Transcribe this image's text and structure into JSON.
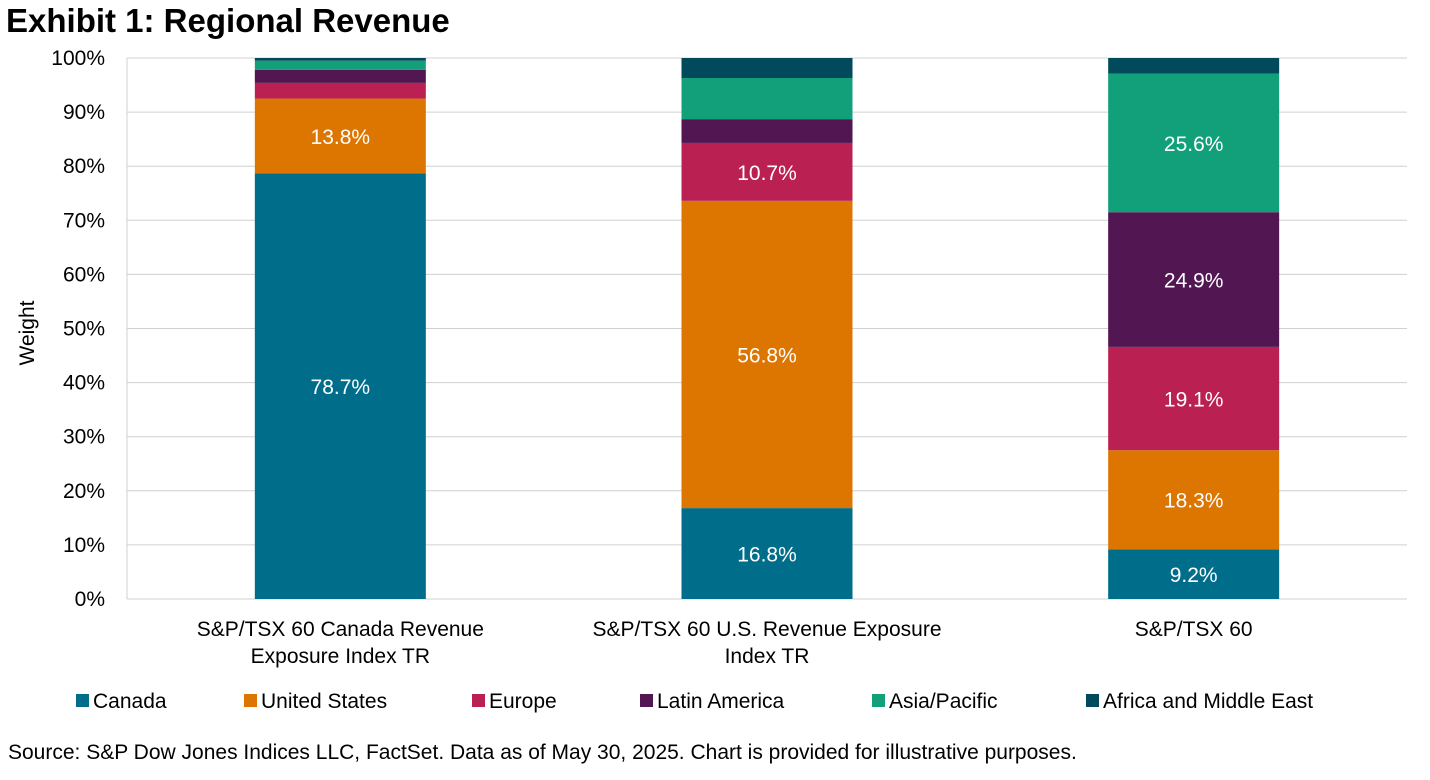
{
  "chart_data": {
    "type": "bar",
    "stacked": true,
    "title": "Exhibit 1: Regional Revenue",
    "xlabel": "",
    "ylabel": "Weight",
    "ylim": [
      0,
      100
    ],
    "yticks": [
      "0%",
      "10%",
      "20%",
      "30%",
      "40%",
      "50%",
      "60%",
      "70%",
      "80%",
      "90%",
      "100%"
    ],
    "ytick_values": [
      0,
      10,
      20,
      30,
      40,
      50,
      60,
      70,
      80,
      90,
      100
    ],
    "grid": true,
    "legend_position": "bottom",
    "categories": [
      [
        "S&P/TSX 60 Canada Revenue",
        "Exposure Index TR"
      ],
      [
        "S&P/TSX 60 U.S. Revenue Exposure",
        "Index TR"
      ],
      [
        "S&P/TSX 60"
      ]
    ],
    "series": [
      {
        "name": "Canada",
        "color": "#006E8A",
        "values": [
          78.7,
          16.8,
          9.2
        ],
        "labels": [
          "78.7%",
          "16.8%",
          "9.2%"
        ]
      },
      {
        "name": "United States",
        "color": "#DC7600",
        "values": [
          13.8,
          56.8,
          18.3
        ],
        "labels": [
          "13.8%",
          "56.8%",
          "18.3%"
        ]
      },
      {
        "name": "Europe",
        "color": "#BB2052",
        "values": [
          2.9,
          10.7,
          19.1
        ],
        "labels": [
          "",
          "10.7%",
          "19.1%"
        ]
      },
      {
        "name": "Latin America",
        "color": "#521652",
        "values": [
          2.4,
          4.4,
          24.9
        ],
        "labels": [
          "",
          "",
          "24.9%"
        ]
      },
      {
        "name": "Asia/Pacific",
        "color": "#12A07A",
        "values": [
          1.7,
          7.6,
          25.6
        ],
        "labels": [
          "",
          "",
          "25.6%"
        ]
      },
      {
        "name": "Africa and Middle East",
        "color": "#004A5C",
        "values": [
          0.5,
          3.7,
          2.9
        ],
        "labels": [
          "",
          "",
          ""
        ]
      }
    ]
  },
  "source_note": "Source: S&P Dow Jones Indices LLC, FactSet. Data as of May 30, 2025. Chart is provided for illustrative purposes."
}
